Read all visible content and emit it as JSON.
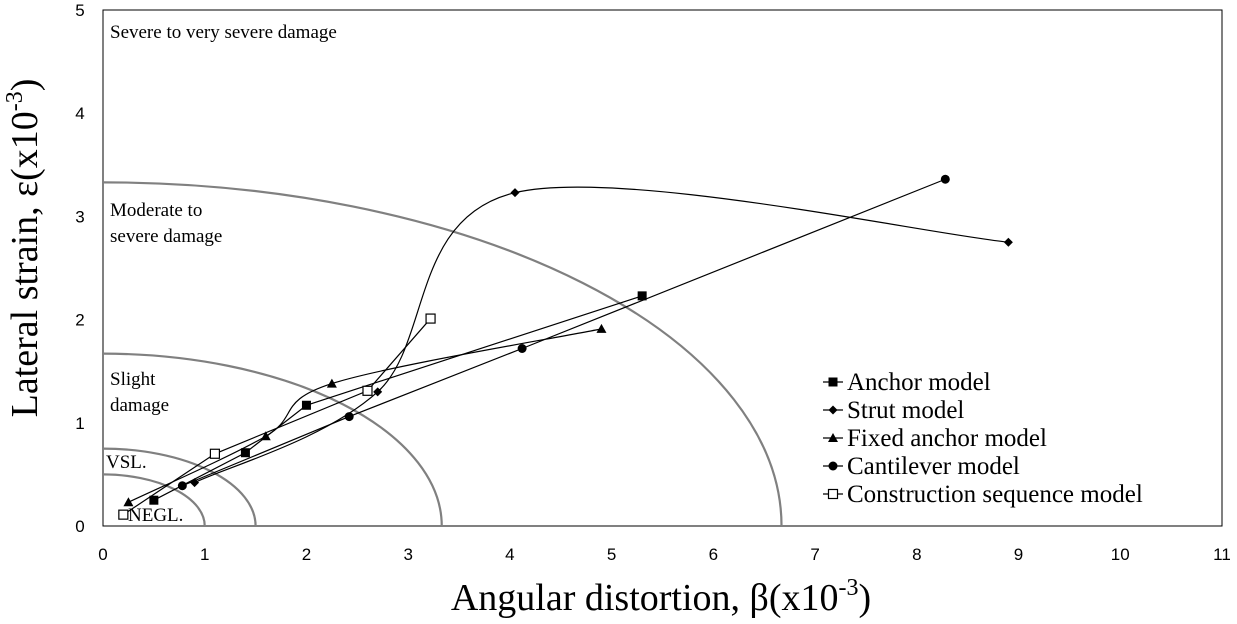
{
  "chart_data": {
    "type": "scatter",
    "xlabel": "Angular distortion, β(x10",
    "xlabel_sup": "-3",
    "xlabel_end": ")",
    "ylabel": "Lateral strain, ε(x10",
    "ylabel_sup": "-3",
    "ylabel_end": ")",
    "xlim": [
      0,
      11
    ],
    "ylim": [
      0,
      5
    ],
    "xticks": [
      "0",
      "1",
      "2",
      "3",
      "4",
      "5",
      "6",
      "7",
      "8",
      "9",
      "10",
      "11"
    ],
    "yticks": [
      "0",
      "1",
      "2",
      "3",
      "4",
      "5"
    ],
    "grid": false,
    "legend_position": "bottom-right",
    "zones": [
      {
        "label": "NEGL.",
        "lines": [
          "NEGL."
        ],
        "beta_max": 1.0,
        "eps_max": 0.5
      },
      {
        "label": "VSL.",
        "lines": [
          "VSL."
        ],
        "beta_max": 1.5,
        "eps_max": 0.75
      },
      {
        "label": "Slight damage",
        "lines": [
          "Slight",
          "damage"
        ],
        "beta_max": 3.33,
        "eps_max": 1.67
      },
      {
        "label": "Moderate to severe damage",
        "lines": [
          "Moderate to",
          "severe damage"
        ],
        "beta_max": 6.67,
        "eps_max": 3.33
      },
      {
        "label": "Severe to very severe damage",
        "lines": [
          "Severe to very severe damage"
        ]
      }
    ],
    "series": [
      {
        "name": "Anchor model",
        "marker": "square",
        "smooth": false,
        "x": [
          0.5,
          1.4,
          2.0,
          5.3
        ],
        "y": [
          0.25,
          0.71,
          1.17,
          2.23
        ]
      },
      {
        "name": "Strut model",
        "marker": "diamond",
        "smooth": true,
        "x": [
          0.9,
          2.7,
          4.05,
          8.9
        ],
        "y": [
          0.42,
          1.3,
          3.23,
          2.75
        ]
      },
      {
        "name": "Fixed anchor model",
        "marker": "triangle",
        "smooth": true,
        "x": [
          0.25,
          1.6,
          2.25,
          4.9
        ],
        "y": [
          0.23,
          0.87,
          1.38,
          1.91
        ]
      },
      {
        "name": "Cantilever model",
        "marker": "circle",
        "smooth": false,
        "x": [
          0.78,
          2.42,
          4.12,
          8.28
        ],
        "y": [
          0.39,
          1.06,
          1.72,
          3.36
        ]
      },
      {
        "name": "Construction sequence model",
        "marker": "open-square",
        "smooth": false,
        "x": [
          0.2,
          1.1,
          2.6,
          3.22
        ],
        "y": [
          0.11,
          0.7,
          1.31,
          2.01
        ]
      }
    ],
    "colors": {
      "data": "#000000",
      "zone_boundary": "#808080",
      "frame": "#000000"
    }
  }
}
